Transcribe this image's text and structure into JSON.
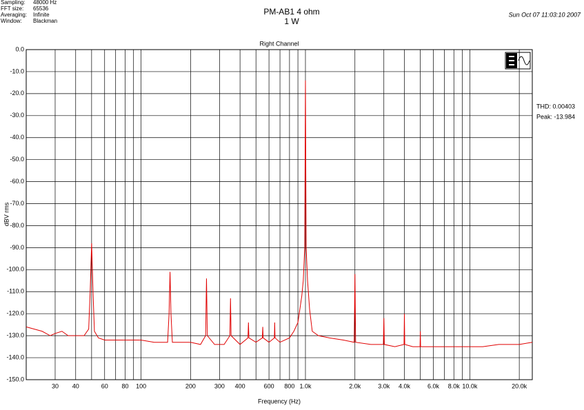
{
  "chart_data": {
    "type": "line",
    "title": "PM-AB1  4 ohm",
    "subtitle": "1 W",
    "timestamp": "Sun Oct 07 11:03:10 2007",
    "plot_title": "Right Channel",
    "settings": [
      {
        "label": "Sampling:",
        "value": "48000 Hz"
      },
      {
        "label": "FFT size:",
        "value": "65536"
      },
      {
        "label": "Averaging:",
        "value": "Infinite"
      },
      {
        "label": "Window:",
        "value": "Blackman"
      }
    ],
    "annotations": [
      "THD: 0.00403",
      "Peak: -13.984"
    ],
    "x_label": "Frequency (Hz)",
    "y_label": "dBV rms",
    "log_x": true,
    "grid": true,
    "color": "#e00000",
    "xlim": [
      20,
      24000
    ],
    "ylim": [
      -150,
      0
    ],
    "xticks": [
      30,
      40,
      {
        "value": 50,
        "label": null
      },
      60,
      {
        "value": 70,
        "label": null
      },
      80,
      {
        "value": 90,
        "label": null
      },
      100,
      200,
      300,
      400,
      {
        "value": 500,
        "label": null
      },
      600,
      {
        "value": 700,
        "label": null
      },
      800,
      {
        "value": 900,
        "label": null
      },
      {
        "value": 1000,
        "label": "1.0k"
      },
      {
        "value": 2000,
        "label": "2.0k"
      },
      {
        "value": 3000,
        "label": "3.0k"
      },
      {
        "value": 4000,
        "label": "4.0k"
      },
      {
        "value": 5000,
        "label": null
      },
      {
        "value": 6000,
        "label": "6.0k"
      },
      {
        "value": 7000,
        "label": null
      },
      {
        "value": 8000,
        "label": "8.0k"
      },
      {
        "value": 9000,
        "label": null
      },
      {
        "value": 10000,
        "label": "10.0k"
      },
      {
        "value": 20000,
        "label": "20.0k"
      }
    ],
    "yticks": [
      {
        "value": 0,
        "label": "0.0"
      },
      {
        "value": -10,
        "label": "-10.0"
      },
      {
        "value": -20,
        "label": "-20.0"
      },
      {
        "value": -30,
        "label": "-30.0"
      },
      {
        "value": -40,
        "label": "-40.0"
      },
      {
        "value": -50,
        "label": "-50.0"
      },
      {
        "value": -60,
        "label": "-60.0"
      },
      {
        "value": -70,
        "label": "-70.0"
      },
      {
        "value": -80,
        "label": "-80.0"
      },
      {
        "value": -90,
        "label": "-90.0"
      },
      {
        "value": -100,
        "label": "-100.0"
      },
      {
        "value": -110,
        "label": "-110.0"
      },
      {
        "value": -120,
        "label": "-120.0"
      },
      {
        "value": -130,
        "label": "-130.0"
      },
      {
        "value": -140,
        "label": "-140.0"
      },
      {
        "value": -150,
        "label": "-150.0"
      }
    ],
    "x": [
      20,
      25,
      28,
      30,
      33,
      36,
      40,
      45,
      48,
      49,
      50,
      51,
      52,
      55,
      60,
      70,
      80,
      90,
      100,
      120,
      145,
      148,
      150,
      152,
      155,
      180,
      200,
      230,
      247,
      250,
      253,
      280,
      320,
      347,
      350,
      353,
      400,
      447,
      450,
      453,
      500,
      547,
      550,
      553,
      600,
      647,
      650,
      653,
      700,
      800,
      850,
      900,
      950,
      970,
      990,
      1000,
      1010,
      1030,
      1060,
      1100,
      1200,
      1400,
      1700,
      1980,
      2000,
      2020,
      2500,
      2980,
      3000,
      3020,
      3500,
      3980,
      4000,
      4020,
      4500,
      4980,
      5000,
      5020,
      6000,
      8000,
      10000,
      12000,
      15000,
      20000,
      24000
    ],
    "values": [
      -126,
      -128,
      -130,
      -129,
      -128,
      -130,
      -130,
      -130,
      -127,
      -110,
      -88,
      -110,
      -128,
      -131,
      -132,
      -132,
      -132,
      -132,
      -132,
      -133,
      -133,
      -120,
      -101,
      -120,
      -133,
      -133,
      -133,
      -134,
      -130,
      -104,
      -130,
      -134,
      -134,
      -130,
      -113,
      -130,
      -134,
      -131,
      -124,
      -131,
      -133,
      -131,
      -126,
      -131,
      -133,
      -131,
      -124,
      -131,
      -133,
      -131,
      -128,
      -124,
      -112,
      -105,
      -90,
      -14,
      -90,
      -105,
      -118,
      -128,
      -130,
      -131,
      -132,
      -133,
      -102,
      -133,
      -134,
      -134,
      -122,
      -134,
      -135,
      -134,
      -120,
      -134,
      -135,
      -135,
      -128,
      -135,
      -135,
      -135,
      -135,
      -135,
      -134,
      -134,
      -133
    ]
  }
}
